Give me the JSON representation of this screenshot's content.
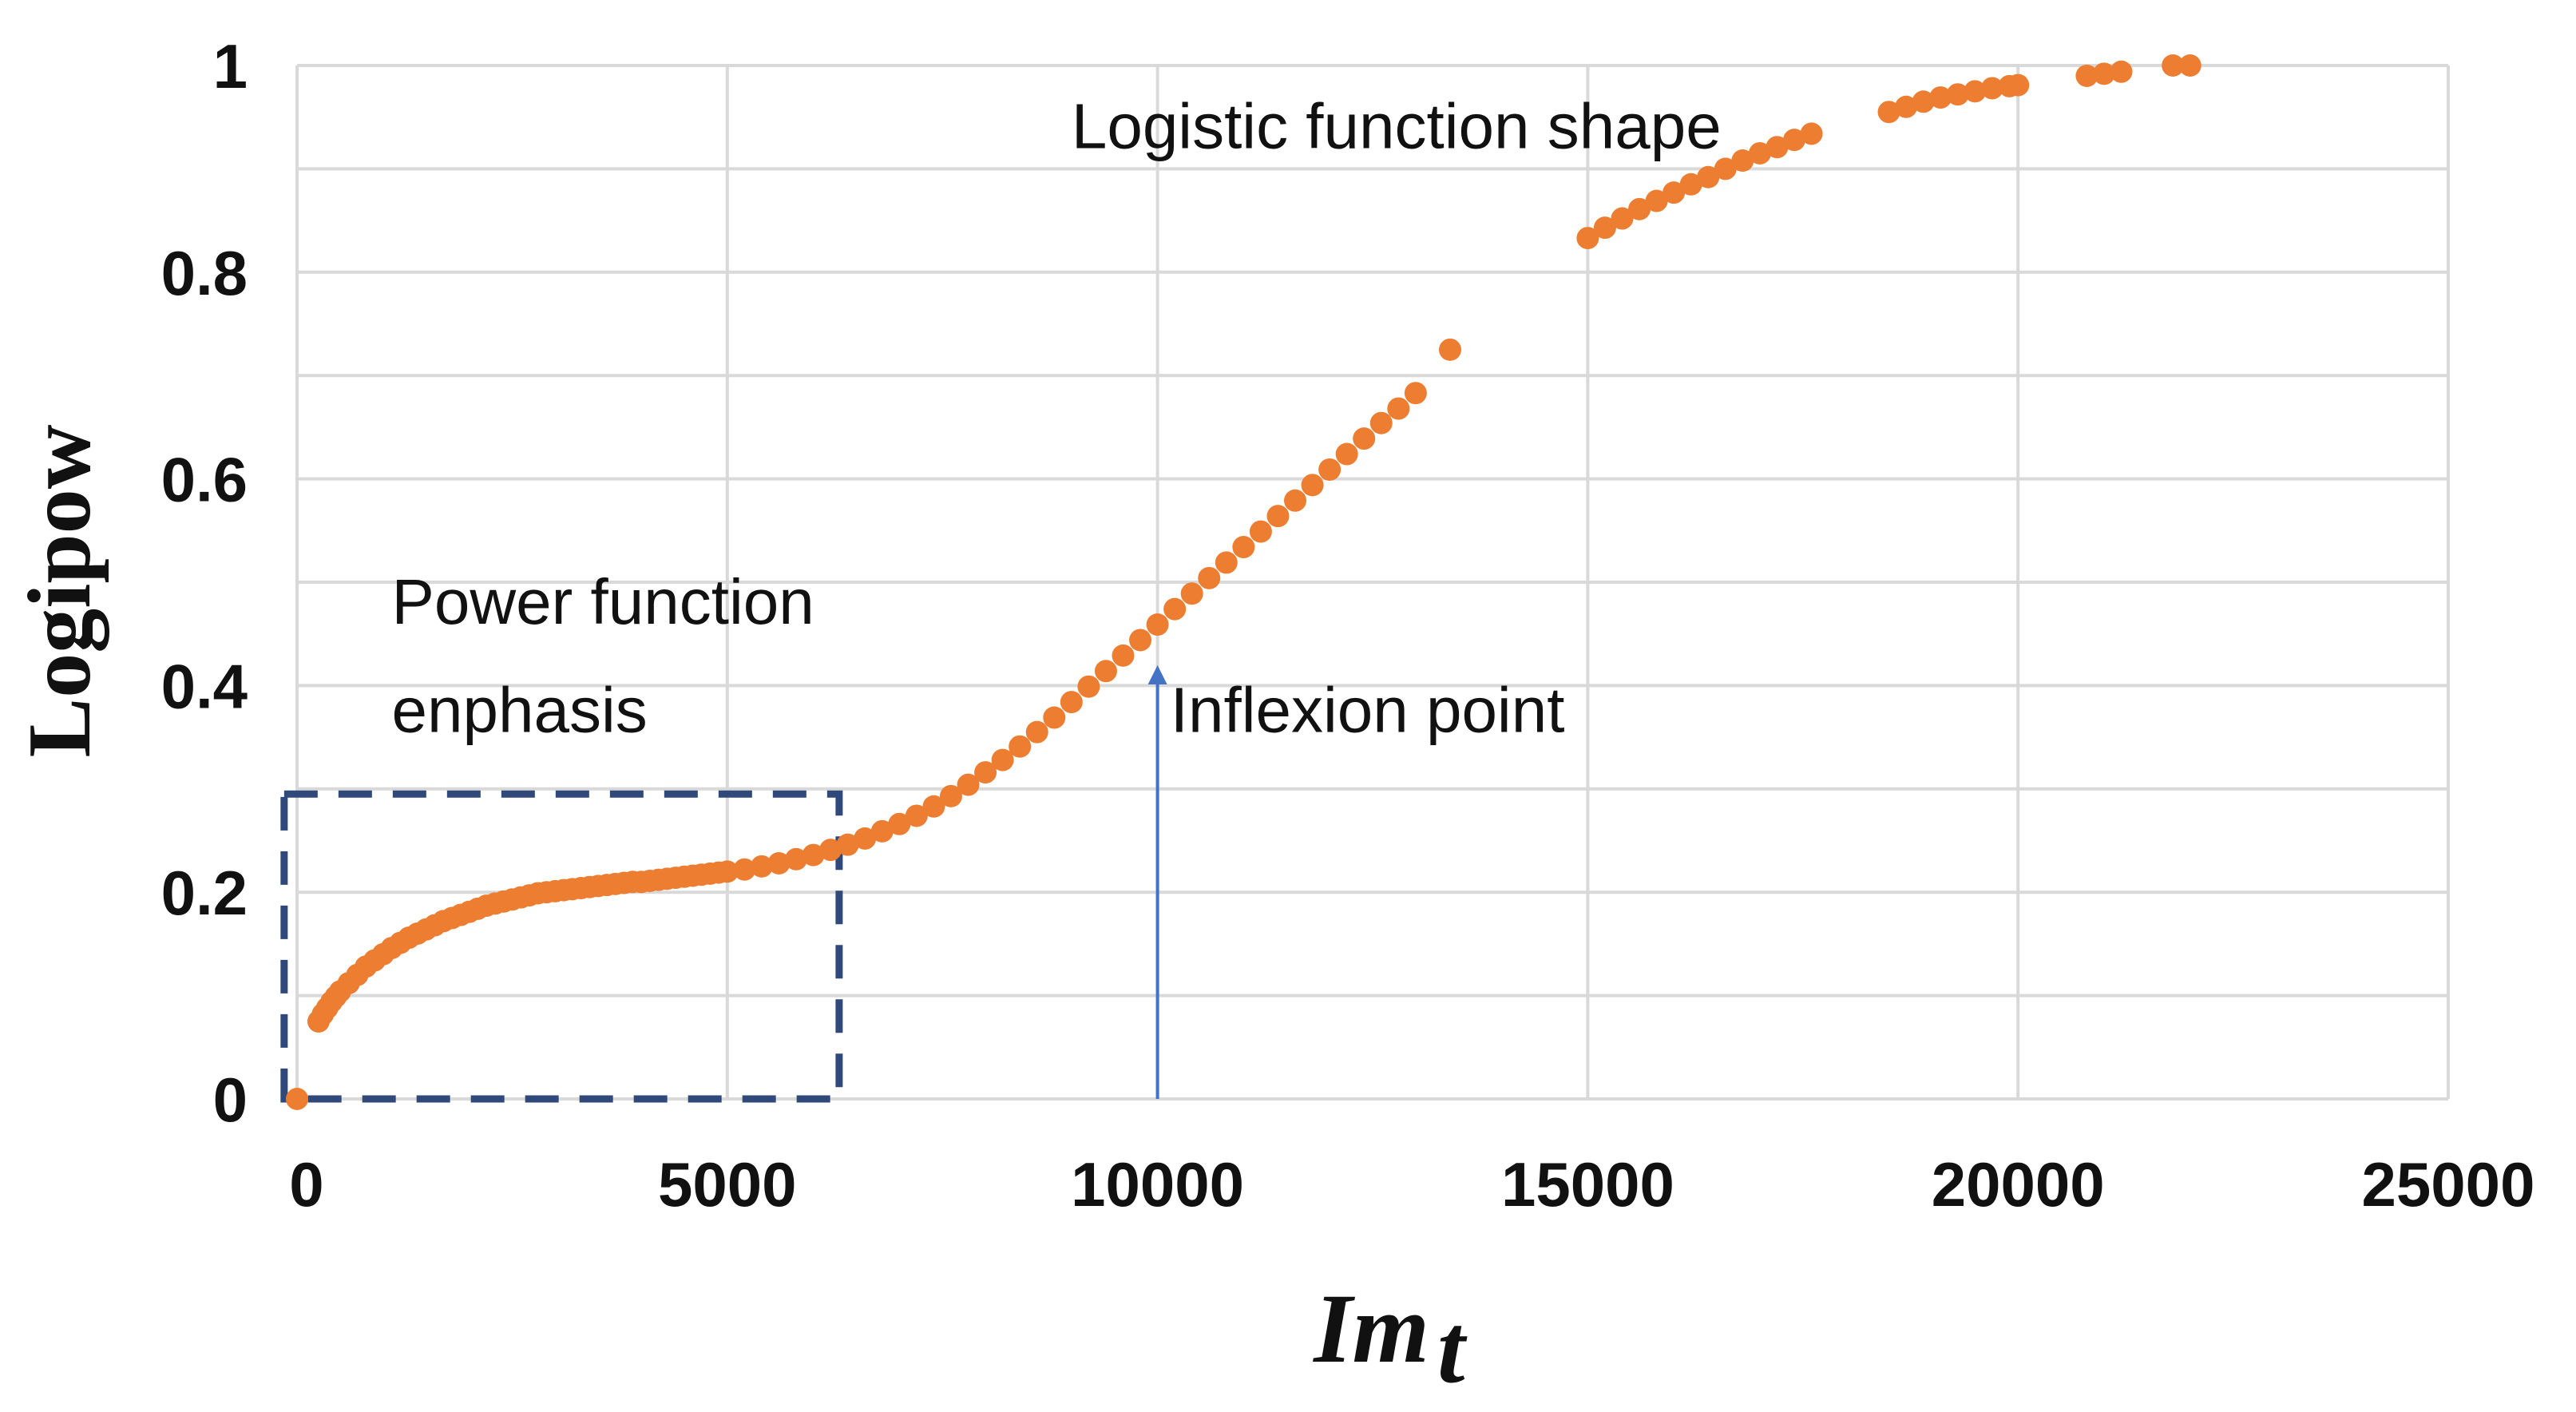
{
  "chart_data": {
    "type": "scatter",
    "xlabel": "Im",
    "xlabel_subscript": "t",
    "ylabel": "Logipow",
    "xlim": [
      0,
      25000
    ],
    "ylim": [
      0,
      1
    ],
    "x_ticks": [
      0,
      5000,
      10000,
      15000,
      20000,
      25000
    ],
    "x_tick_labels": [
      "0",
      "5000",
      "10000",
      "15000",
      "20000",
      "25000"
    ],
    "y_ticks": [
      0,
      0.1,
      0.2,
      0.3,
      0.4,
      0.5,
      0.6,
      0.7,
      0.8,
      0.9,
      1
    ],
    "y_tick_labels": [
      "0",
      "",
      "0.2",
      "",
      "0.4",
      "",
      "0.6",
      "",
      "0.8",
      "",
      "1"
    ],
    "grid": true,
    "colors": {
      "points": "#ed7d31",
      "box": "#2f4a7a",
      "arrow": "#4472c4"
    },
    "series": [
      {
        "name": "Logipow",
        "points": [
          [
            0,
            0.0
          ],
          [
            250,
            0.075
          ],
          [
            300,
            0.082
          ],
          [
            350,
            0.088
          ],
          [
            400,
            0.094
          ],
          [
            450,
            0.099
          ],
          [
            500,
            0.104
          ],
          [
            600,
            0.112
          ],
          [
            700,
            0.12
          ],
          [
            800,
            0.128
          ],
          [
            900,
            0.134
          ],
          [
            1000,
            0.14
          ],
          [
            1100,
            0.146
          ],
          [
            1200,
            0.151
          ],
          [
            1300,
            0.156
          ],
          [
            1400,
            0.16
          ],
          [
            1500,
            0.164
          ],
          [
            1600,
            0.168
          ],
          [
            1700,
            0.172
          ],
          [
            1800,
            0.175
          ],
          [
            1900,
            0.178
          ],
          [
            2000,
            0.181
          ],
          [
            2100,
            0.184
          ],
          [
            2200,
            0.187
          ],
          [
            2300,
            0.189
          ],
          [
            2400,
            0.191
          ],
          [
            2500,
            0.193
          ],
          [
            2600,
            0.195
          ],
          [
            2700,
            0.197
          ],
          [
            2800,
            0.199
          ],
          [
            2900,
            0.2
          ],
          [
            3000,
            0.201
          ],
          [
            3100,
            0.202
          ],
          [
            3200,
            0.203
          ],
          [
            3300,
            0.204
          ],
          [
            3400,
            0.205
          ],
          [
            3500,
            0.206
          ],
          [
            3600,
            0.207
          ],
          [
            3700,
            0.208
          ],
          [
            3800,
            0.209
          ],
          [
            3900,
            0.21
          ],
          [
            4000,
            0.21
          ],
          [
            4100,
            0.211
          ],
          [
            4200,
            0.212
          ],
          [
            4300,
            0.213
          ],
          [
            4400,
            0.214
          ],
          [
            4500,
            0.215
          ],
          [
            4600,
            0.216
          ],
          [
            4700,
            0.217
          ],
          [
            4800,
            0.218
          ],
          [
            4900,
            0.219
          ],
          [
            5000,
            0.22
          ],
          [
            5200,
            0.222
          ],
          [
            5400,
            0.225
          ],
          [
            5600,
            0.228
          ],
          [
            5800,
            0.232
          ],
          [
            6000,
            0.236
          ],
          [
            6200,
            0.241
          ],
          [
            6400,
            0.246
          ],
          [
            6600,
            0.252
          ],
          [
            6800,
            0.259
          ],
          [
            7000,
            0.266
          ],
          [
            7200,
            0.274
          ],
          [
            7400,
            0.283
          ],
          [
            7600,
            0.293
          ],
          [
            7800,
            0.304
          ],
          [
            8000,
            0.316
          ],
          [
            8200,
            0.328
          ],
          [
            8400,
            0.341
          ],
          [
            8600,
            0.355
          ],
          [
            8800,
            0.369
          ],
          [
            9000,
            0.384
          ],
          [
            9200,
            0.399
          ],
          [
            9400,
            0.414
          ],
          [
            9600,
            0.429
          ],
          [
            9800,
            0.444
          ],
          [
            10000,
            0.459
          ],
          [
            10200,
            0.474
          ],
          [
            10400,
            0.489
          ],
          [
            10600,
            0.504
          ],
          [
            10800,
            0.519
          ],
          [
            11000,
            0.534
          ],
          [
            11200,
            0.549
          ],
          [
            11400,
            0.564
          ],
          [
            11600,
            0.579
          ],
          [
            11800,
            0.594
          ],
          [
            12000,
            0.609
          ],
          [
            12200,
            0.624
          ],
          [
            12400,
            0.639
          ],
          [
            12600,
            0.654
          ],
          [
            12800,
            0.668
          ],
          [
            13000,
            0.683
          ],
          [
            13400,
            0.725
          ],
          [
            15000,
            0.833
          ],
          [
            15200,
            0.843
          ],
          [
            15400,
            0.852
          ],
          [
            15600,
            0.861
          ],
          [
            15800,
            0.869
          ],
          [
            16000,
            0.877
          ],
          [
            16200,
            0.885
          ],
          [
            16400,
            0.892
          ],
          [
            16600,
            0.9
          ],
          [
            16800,
            0.908
          ],
          [
            17000,
            0.915
          ],
          [
            17200,
            0.921
          ],
          [
            17400,
            0.928
          ],
          [
            17600,
            0.934
          ],
          [
            18500,
            0.955
          ],
          [
            18700,
            0.96
          ],
          [
            18900,
            0.965
          ],
          [
            19100,
            0.969
          ],
          [
            19300,
            0.972
          ],
          [
            19500,
            0.975
          ],
          [
            19700,
            0.978
          ],
          [
            19900,
            0.98
          ],
          [
            20000,
            0.981
          ],
          [
            20800,
            0.99
          ],
          [
            21000,
            0.992
          ],
          [
            21200,
            0.994
          ],
          [
            21800,
            1.0
          ],
          [
            22000,
            1.0
          ]
        ]
      }
    ],
    "annotations": [
      {
        "name": "logistic-label",
        "text": "Logistic function shape",
        "x": 9000,
        "y": 0.92
      },
      {
        "name": "power-label-line1",
        "text": "Power function",
        "x": 1100,
        "y": 0.46
      },
      {
        "name": "power-label-line2",
        "text": "enphasis",
        "x": 1100,
        "y": 0.355
      },
      {
        "name": "inflexion-label",
        "text": "Inflexion point",
        "x": 10150,
        "y": 0.355
      }
    ],
    "inflexion_arrow": {
      "x": 10000,
      "y_from": 0.0,
      "y_to": 0.415
    },
    "highlight_box": {
      "x_from": -150,
      "x_to": 6300,
      "y_from": 0.0,
      "y_to": 0.295
    }
  }
}
